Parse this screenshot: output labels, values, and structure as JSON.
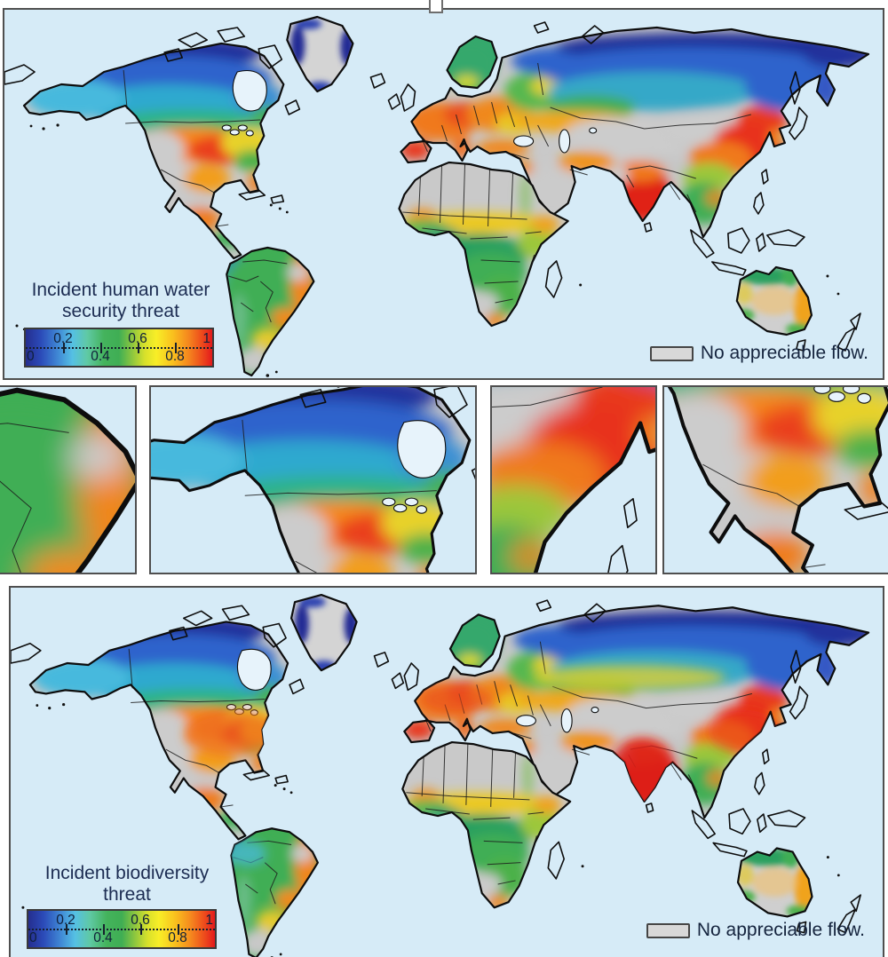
{
  "figure": {
    "artifact_glyph": {
      "name": "missing-character-box"
    }
  },
  "colormap": {
    "stops": [
      [
        "0%",
        "#252e8f"
      ],
      [
        "8%",
        "#2b4ab8"
      ],
      [
        "17%",
        "#3f86d4"
      ],
      [
        "25%",
        "#55c0e4"
      ],
      [
        "33%",
        "#5fc9a4"
      ],
      [
        "42%",
        "#44b35c"
      ],
      [
        "50%",
        "#3fae54"
      ],
      [
        "57%",
        "#8cc63f"
      ],
      [
        "64%",
        "#d8e12b"
      ],
      [
        "70%",
        "#f8ee27"
      ],
      [
        "79%",
        "#f9bf1e"
      ],
      [
        "87%",
        "#f5891e"
      ],
      [
        "94%",
        "#ee4f1c"
      ],
      [
        "100%",
        "#e31a1c"
      ]
    ],
    "ticks_top": [
      {
        "label": "0.2",
        "pos": "20%"
      },
      {
        "label": "0.6",
        "pos": "60%"
      },
      {
        "label": "1",
        "pos": "97%"
      }
    ],
    "ticks_bottom": [
      {
        "label": "0",
        "pos": "2.5%"
      },
      {
        "label": "0.4",
        "pos": "40%"
      },
      {
        "label": "0.8",
        "pos": "80%"
      }
    ],
    "major_tick_positions": [
      "20%",
      "40%",
      "60%",
      "80%"
    ],
    "range": [
      0,
      1
    ]
  },
  "top_panel": {
    "title_line1": "Incident human water",
    "title_line2": "security threat",
    "no_flow_label": "No appreciable flow."
  },
  "bottom_panel": {
    "title_line1": "Incident biodiversity",
    "title_line2": "threat",
    "no_flow_label": "No appreciable flow."
  },
  "insets": [
    {
      "region": "eastern-south-america-brazil"
    },
    {
      "region": "canada-and-northern-united-states"
    },
    {
      "region": "eastern-china-southeast-asia"
    },
    {
      "region": "southern-united-states-mexico"
    }
  ],
  "colors": {
    "ocean": "#d6ebf7",
    "no_flow_land": "#c9c9c9",
    "coastline": "#0d0d0d",
    "panel_border": "#4f4f4f",
    "legend_text": "#1c2c52",
    "tick_text": "#10203a"
  }
}
